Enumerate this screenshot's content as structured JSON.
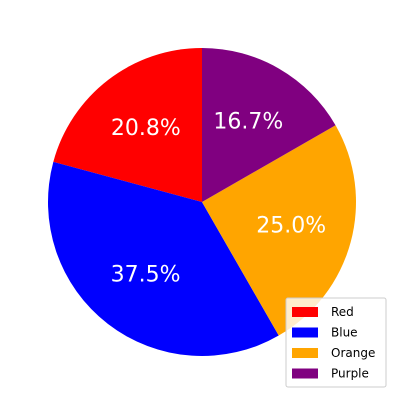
{
  "chart_data": {
    "type": "pie",
    "categories": [
      "Red",
      "Blue",
      "Orange",
      "Purple"
    ],
    "values": [
      20.8,
      37.5,
      25.0,
      16.7
    ],
    "labels": [
      "20.8%",
      "37.5%",
      "25.0%",
      "16.7%"
    ],
    "colors": [
      "#ff0000",
      "#0000ff",
      "#ffa500",
      "#800080"
    ],
    "start_angle_deg": 90,
    "direction": "counterclockwise",
    "legend": {
      "placement": "lower-right",
      "entries": [
        "Red",
        "Blue",
        "Orange",
        "Purple"
      ]
    }
  }
}
